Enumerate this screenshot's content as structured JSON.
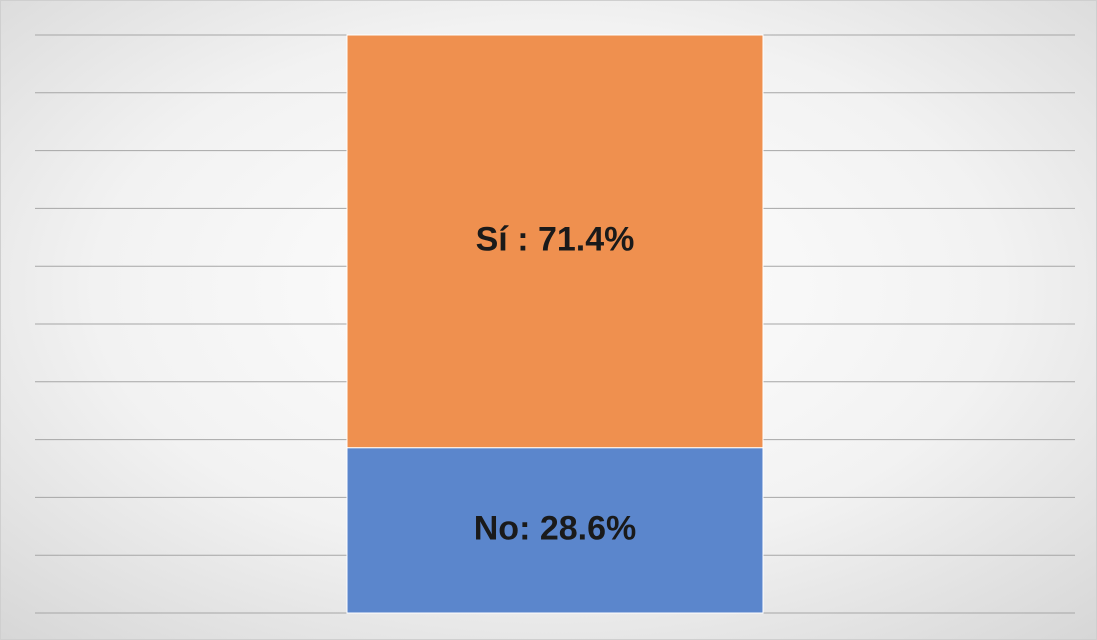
{
  "chart_data": {
    "type": "stacked_bar",
    "categories": [
      null
    ],
    "series": [
      {
        "color": "#5b86cc",
        "values": [
          28.6
        ],
        "value_labels": [
          "No: 28.6%"
        ]
      },
      {
        "color": "#ef904f",
        "values": [
          71.4
        ],
        "value_labels": [
          "Sí : 71.4%"
        ]
      }
    ],
    "ylim": [
      0,
      100
    ],
    "yticks": [
      0,
      10,
      20,
      30,
      40,
      50,
      60,
      70,
      80,
      90,
      100
    ],
    "grid": true
  }
}
